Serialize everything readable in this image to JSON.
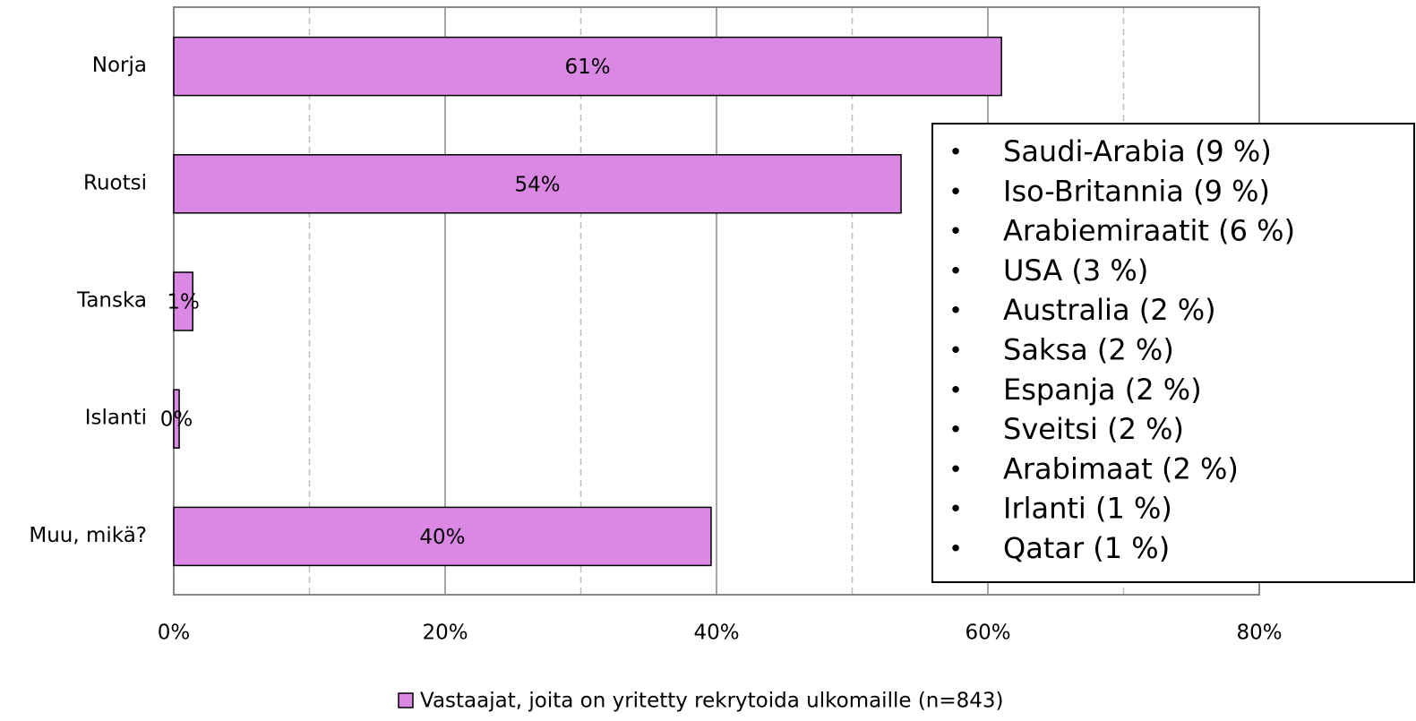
{
  "chart_data": {
    "type": "bar",
    "orientation": "horizontal",
    "categories": [
      "Norja",
      "Ruotsi",
      "Tanska",
      "Islanti",
      "Muu, mikä?"
    ],
    "series": [
      {
        "name": "Vastaajat, joita on yritetty rekrytoida ulkomaille (n=843)",
        "color": "#da88e4",
        "values": [
          61,
          53.6,
          1.4,
          0.4,
          39.6
        ],
        "value_labels": [
          "61%",
          "54%",
          "1%",
          "0%",
          "40%"
        ]
      }
    ],
    "xlim": [
      0,
      80
    ],
    "xticks": [
      {
        "value": 0,
        "label": "0%"
      },
      {
        "value": 20,
        "label": "20%"
      },
      {
        "value": 40,
        "label": "40%"
      },
      {
        "value": 60,
        "label": "60%"
      },
      {
        "value": 80,
        "label": "80%"
      }
    ],
    "xminor": [
      10,
      30,
      50,
      70
    ],
    "grid": true,
    "legend": "bottom",
    "annotation": {
      "items": [
        "Saudi-Arabia (9 %)",
        "Iso-Britannia (9 %)",
        "Arabiemiraatit (6 %)",
        "USA (3 %)",
        "Australia (2 %)",
        "Saksa (2 %)",
        "Espanja (2 %)",
        "Sveitsi (2 %)",
        "Arabimaat (2 %)",
        "Irlanti (1 %)",
        "Qatar (1 %)"
      ]
    }
  }
}
